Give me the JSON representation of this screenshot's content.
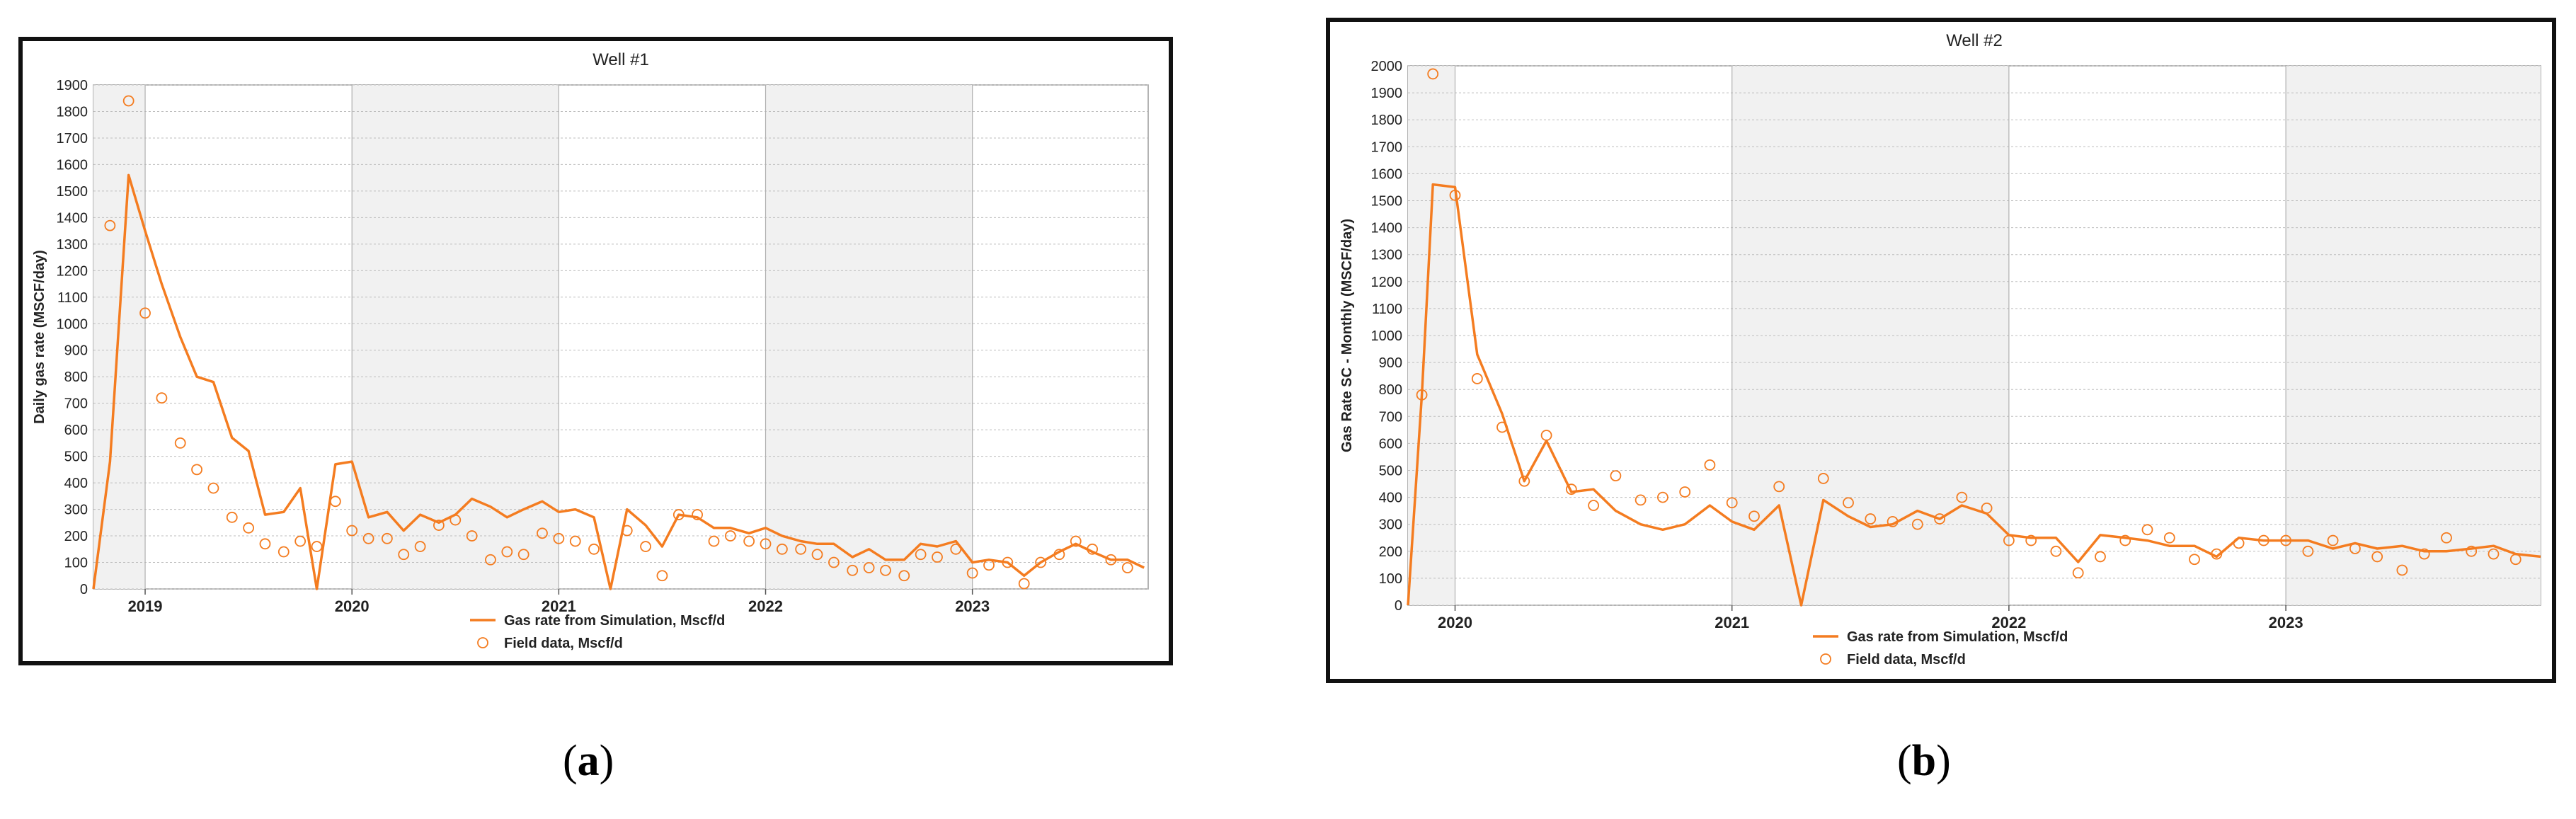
{
  "chart_data": [
    {
      "type": "line",
      "title": "Well #1",
      "ylabel": "Daily gas rate (MSCF/day)",
      "xlabel": "",
      "x_unit": "year",
      "xlim": [
        2018.75,
        2023.85
      ],
      "ylim": [
        0,
        1900
      ],
      "yticks": [
        0,
        100,
        200,
        300,
        400,
        500,
        600,
        700,
        800,
        900,
        1000,
        1100,
        1200,
        1300,
        1400,
        1500,
        1600,
        1700,
        1800,
        1900
      ],
      "xticks": [
        2019,
        2020,
        2021,
        2022,
        2023
      ],
      "xtick_labels": [
        "2019",
        "2020",
        "2021",
        "2022",
        "2023"
      ],
      "shaded_years": [
        [
          2018.75,
          2019
        ],
        [
          2020,
          2021
        ],
        [
          2022,
          2023
        ]
      ],
      "legend_position": "bottom-center",
      "series": [
        {
          "name": "Gas rate from Simulation, Mscf/d",
          "kind": "line",
          "color": "#f47c20",
          "x": [
            2018.75,
            2018.83,
            2018.92,
            2019.0,
            2019.08,
            2019.17,
            2019.25,
            2019.33,
            2019.42,
            2019.5,
            2019.58,
            2019.67,
            2019.75,
            2019.83,
            2019.92,
            2020.0,
            2020.08,
            2020.17,
            2020.25,
            2020.33,
            2020.42,
            2020.5,
            2020.58,
            2020.67,
            2020.75,
            2020.83,
            2020.92,
            2021.0,
            2021.08,
            2021.17,
            2021.25,
            2021.33,
            2021.42,
            2021.5,
            2021.58,
            2021.67,
            2021.75,
            2021.83,
            2021.92,
            2022.0,
            2022.08,
            2022.17,
            2022.25,
            2022.33,
            2022.42,
            2022.5,
            2022.58,
            2022.67,
            2022.75,
            2022.83,
            2022.92,
            2023.0,
            2023.08,
            2023.17,
            2023.25,
            2023.33,
            2023.42,
            2023.5,
            2023.58,
            2023.67,
            2023.75,
            2023.83
          ],
          "y": [
            0,
            480,
            1560,
            1350,
            1150,
            950,
            800,
            780,
            570,
            520,
            280,
            290,
            380,
            0,
            470,
            480,
            270,
            290,
            220,
            280,
            250,
            280,
            340,
            310,
            270,
            300,
            330,
            290,
            300,
            270,
            0,
            300,
            240,
            160,
            280,
            270,
            230,
            230,
            210,
            230,
            200,
            180,
            170,
            170,
            120,
            150,
            110,
            110,
            170,
            160,
            180,
            100,
            110,
            100,
            50,
            100,
            140,
            170,
            140,
            110,
            110,
            80
          ]
        },
        {
          "name": "Field data, Mscf/d",
          "kind": "markers",
          "color": "#f47c20",
          "x": [
            2018.83,
            2018.92,
            2019.0,
            2019.08,
            2019.17,
            2019.25,
            2019.33,
            2019.42,
            2019.5,
            2019.58,
            2019.67,
            2019.75,
            2019.83,
            2019.92,
            2020.0,
            2020.08,
            2020.17,
            2020.25,
            2020.33,
            2020.42,
            2020.5,
            2020.58,
            2020.67,
            2020.75,
            2020.83,
            2020.92,
            2021.0,
            2021.08,
            2021.17,
            2021.33,
            2021.42,
            2021.5,
            2021.58,
            2021.67,
            2021.75,
            2021.83,
            2021.92,
            2022.0,
            2022.08,
            2022.17,
            2022.25,
            2022.33,
            2022.42,
            2022.5,
            2022.58,
            2022.67,
            2022.75,
            2022.83,
            2022.92,
            2023.0,
            2023.08,
            2023.17,
            2023.25,
            2023.33,
            2023.42,
            2023.5,
            2023.58,
            2023.67,
            2023.75
          ],
          "y": [
            1370,
            1840,
            1040,
            720,
            550,
            450,
            380,
            270,
            230,
            170,
            140,
            180,
            160,
            330,
            220,
            190,
            190,
            130,
            160,
            240,
            260,
            200,
            110,
            140,
            130,
            210,
            190,
            180,
            150,
            220,
            160,
            50,
            280,
            280,
            180,
            200,
            180,
            170,
            150,
            150,
            130,
            100,
            70,
            80,
            70,
            50,
            130,
            120,
            150,
            60,
            90,
            100,
            20,
            100,
            130,
            180,
            150,
            110,
            80
          ]
        }
      ],
      "legend": [
        "Gas rate from Simulation, Mscf/d",
        "Field data, Mscf/d"
      ]
    },
    {
      "type": "line",
      "title": "Well #2",
      "ylabel": "Gas Rate SC - Monthly (MSCF/day)",
      "xlabel": "",
      "x_unit": "year",
      "xlim": [
        2019.83,
        2023.92
      ],
      "ylim": [
        0,
        2000
      ],
      "yticks": [
        0,
        100,
        200,
        300,
        400,
        500,
        600,
        700,
        800,
        900,
        1000,
        1100,
        1200,
        1300,
        1400,
        1500,
        1600,
        1700,
        1800,
        1900,
        2000
      ],
      "xticks": [
        2020,
        2021,
        2022,
        2023
      ],
      "xtick_labels": [
        "2020",
        "2021",
        "2022",
        "2023"
      ],
      "shaded_years": [
        [
          2019.83,
          2020
        ],
        [
          2021,
          2022
        ],
        [
          2023,
          2023.92
        ]
      ],
      "legend_position": "bottom-center",
      "series": [
        {
          "name": "Gas rate from Simulation, Mscf/d",
          "kind": "line",
          "color": "#f47c20",
          "x": [
            2019.83,
            2019.88,
            2019.92,
            2020.0,
            2020.08,
            2020.17,
            2020.25,
            2020.33,
            2020.42,
            2020.5,
            2020.58,
            2020.67,
            2020.75,
            2020.83,
            2020.92,
            2021.0,
            2021.08,
            2021.17,
            2021.25,
            2021.33,
            2021.42,
            2021.5,
            2021.58,
            2021.67,
            2021.75,
            2021.83,
            2021.92,
            2022.0,
            2022.08,
            2022.17,
            2022.25,
            2022.33,
            2022.42,
            2022.5,
            2022.58,
            2022.67,
            2022.75,
            2022.83,
            2022.92,
            2023.0,
            2023.08,
            2023.17,
            2023.25,
            2023.33,
            2023.42,
            2023.5,
            2023.58,
            2023.67,
            2023.75,
            2023.83,
            2023.92
          ],
          "y": [
            0,
            780,
            1560,
            1550,
            930,
            710,
            460,
            610,
            420,
            430,
            350,
            300,
            280,
            300,
            370,
            310,
            280,
            370,
            0,
            390,
            330,
            290,
            300,
            350,
            320,
            370,
            340,
            260,
            250,
            250,
            160,
            260,
            250,
            240,
            220,
            220,
            180,
            250,
            240,
            240,
            240,
            210,
            230,
            210,
            220,
            200,
            200,
            210,
            220,
            190,
            180
          ]
        },
        {
          "name": "Field data, Mscf/d",
          "kind": "markers",
          "color": "#f47c20",
          "x": [
            2019.88,
            2019.92,
            2020.0,
            2020.08,
            2020.17,
            2020.25,
            2020.33,
            2020.42,
            2020.5,
            2020.58,
            2020.67,
            2020.75,
            2020.83,
            2020.92,
            2021.0,
            2021.08,
            2021.17,
            2021.33,
            2021.42,
            2021.5,
            2021.58,
            2021.67,
            2021.75,
            2021.83,
            2021.92,
            2022.0,
            2022.08,
            2022.17,
            2022.25,
            2022.33,
            2022.42,
            2022.5,
            2022.58,
            2022.67,
            2022.75,
            2022.83,
            2022.92,
            2023.0,
            2023.08,
            2023.17,
            2023.25,
            2023.33,
            2023.42,
            2023.5,
            2023.58,
            2023.67,
            2023.75,
            2023.83
          ],
          "y": [
            780,
            1970,
            1520,
            840,
            660,
            460,
            630,
            430,
            370,
            480,
            390,
            400,
            420,
            520,
            380,
            330,
            440,
            470,
            380,
            320,
            310,
            300,
            320,
            400,
            360,
            240,
            240,
            200,
            120,
            180,
            240,
            280,
            250,
            170,
            190,
            230,
            240,
            240,
            200,
            240,
            210,
            180,
            130,
            190,
            250,
            200,
            190,
            170
          ]
        }
      ],
      "legend": [
        "Gas rate from Simulation, Mscf/d",
        "Field data, Mscf/d"
      ]
    }
  ],
  "panel_labels": [
    {
      "open": "(",
      "letter": "a",
      "close": ")"
    },
    {
      "open": "(",
      "letter": "b",
      "close": ")"
    }
  ],
  "colors": {
    "line": "#f47c20",
    "shade": "#f1f1f1",
    "grid": "#bdbdbd",
    "frame": "#111111"
  }
}
